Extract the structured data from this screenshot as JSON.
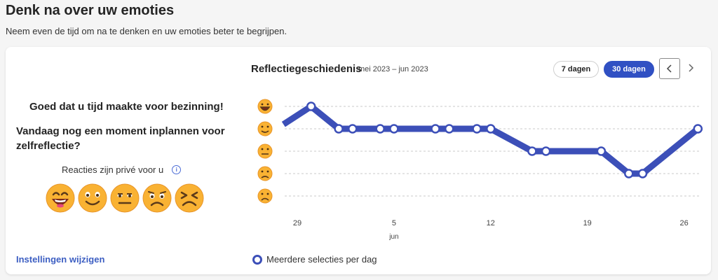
{
  "header": {
    "title": "Denk na over uw emoties",
    "subtitle": "Neem even de tijd om na te denken en uw emoties beter te begrijpen."
  },
  "left": {
    "message1": "Goed dat u tijd maakte voor bezinning!",
    "message2": "Vandaag nog een moment inplannen voor zelfreflectie?",
    "private_note": "Reacties zijn privé voor u",
    "emojis": [
      "very-happy-icon",
      "happy-icon",
      "neutral-icon",
      "sad-icon",
      "very-sad-icon"
    ],
    "settings_link": "Instellingen wijzigen"
  },
  "chart_header": {
    "title": "Reflectiegeschiedenis",
    "range": "mei 2023 – jun 2023",
    "btn_7": "7 dagen",
    "btn_30": "30 dagen",
    "active_range": "30 dagen"
  },
  "legend": {
    "label": "Meerdere selecties per dag"
  },
  "colors": {
    "accent": "#3050c3",
    "line": "#3c4fb8",
    "link": "#3c5ec2"
  },
  "chart_data": {
    "type": "line",
    "xlabel": "",
    "ylabel": "",
    "y_categories": [
      "very-happy",
      "happy",
      "neutral",
      "sad",
      "very-sad"
    ],
    "x_tick_labels": [
      "29",
      "5",
      "12",
      "19",
      "26"
    ],
    "x_month_label": "jun",
    "ylim": [
      1,
      5
    ],
    "grid": true,
    "series": [
      {
        "values": [
          {
            "x": "2023-05-28",
            "y": 4.2
          },
          {
            "x": "2023-05-30",
            "y": 5
          },
          {
            "x": "2023-06-01",
            "y": 4
          },
          {
            "x": "2023-06-02",
            "y": 4
          },
          {
            "x": "2023-06-04",
            "y": 4
          },
          {
            "x": "2023-06-05",
            "y": 4
          },
          {
            "x": "2023-06-08",
            "y": 4
          },
          {
            "x": "2023-06-09",
            "y": 4
          },
          {
            "x": "2023-06-11",
            "y": 4
          },
          {
            "x": "2023-06-12",
            "y": 4
          },
          {
            "x": "2023-06-15",
            "y": 3
          },
          {
            "x": "2023-06-16",
            "y": 3
          },
          {
            "x": "2023-06-20",
            "y": 3
          },
          {
            "x": "2023-06-22",
            "y": 2
          },
          {
            "x": "2023-06-23",
            "y": 2
          },
          {
            "x": "2023-06-27",
            "y": 4
          }
        ]
      }
    ]
  }
}
